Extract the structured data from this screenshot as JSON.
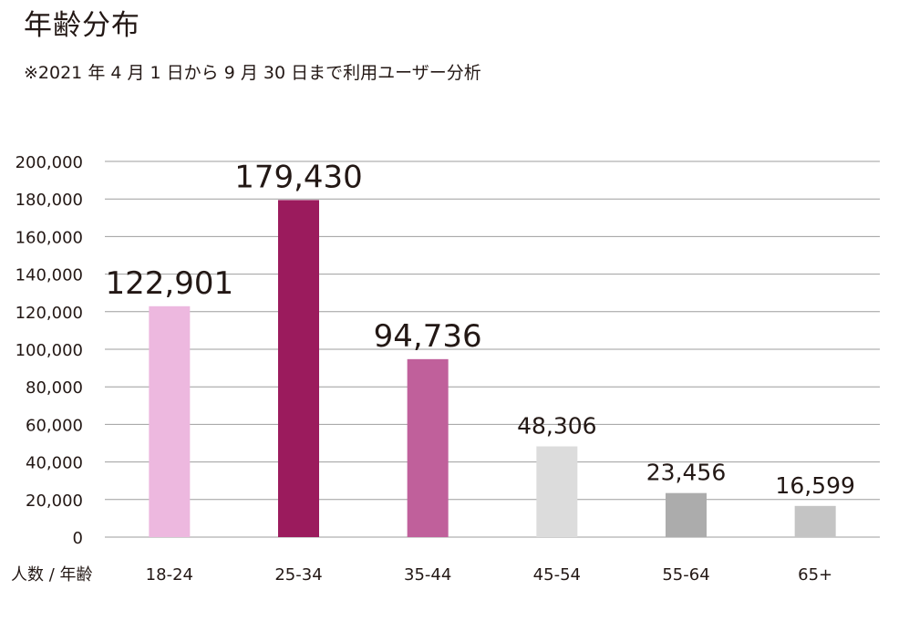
{
  "title": "年齢分布",
  "subtitle": "※2021 年 4 月 1 日から 9 月 30 日まで利用ユーザー分析",
  "chart_data": {
    "type": "bar",
    "xlabel": "人数 / 年齢",
    "ylabel": "",
    "categories": [
      "18-24",
      "25-34",
      "35-44",
      "45-54",
      "55-64",
      "65+"
    ],
    "values": [
      122901,
      179430,
      94736,
      48306,
      23456,
      16599
    ],
    "value_labels": [
      "122,901",
      "179,430",
      "94,736",
      "48,306",
      "23,456",
      "16,599"
    ],
    "colors": [
      "#edb8df",
      "#9b1b5d",
      "#c0609b",
      "#dcdcdc",
      "#acacac",
      "#c4c4c4"
    ],
    "ylim": [
      0,
      200000
    ],
    "yticks": [
      0,
      20000,
      40000,
      60000,
      80000,
      100000,
      120000,
      140000,
      160000,
      180000,
      200000
    ],
    "ytick_labels": [
      "0",
      "20,000",
      "40,000",
      "60,000",
      "80,000",
      "100,000",
      "120,000",
      "140,000",
      "160,000",
      "180,000",
      "200,000"
    ],
    "grid": true,
    "gridline_color": "#9e9e9e"
  }
}
